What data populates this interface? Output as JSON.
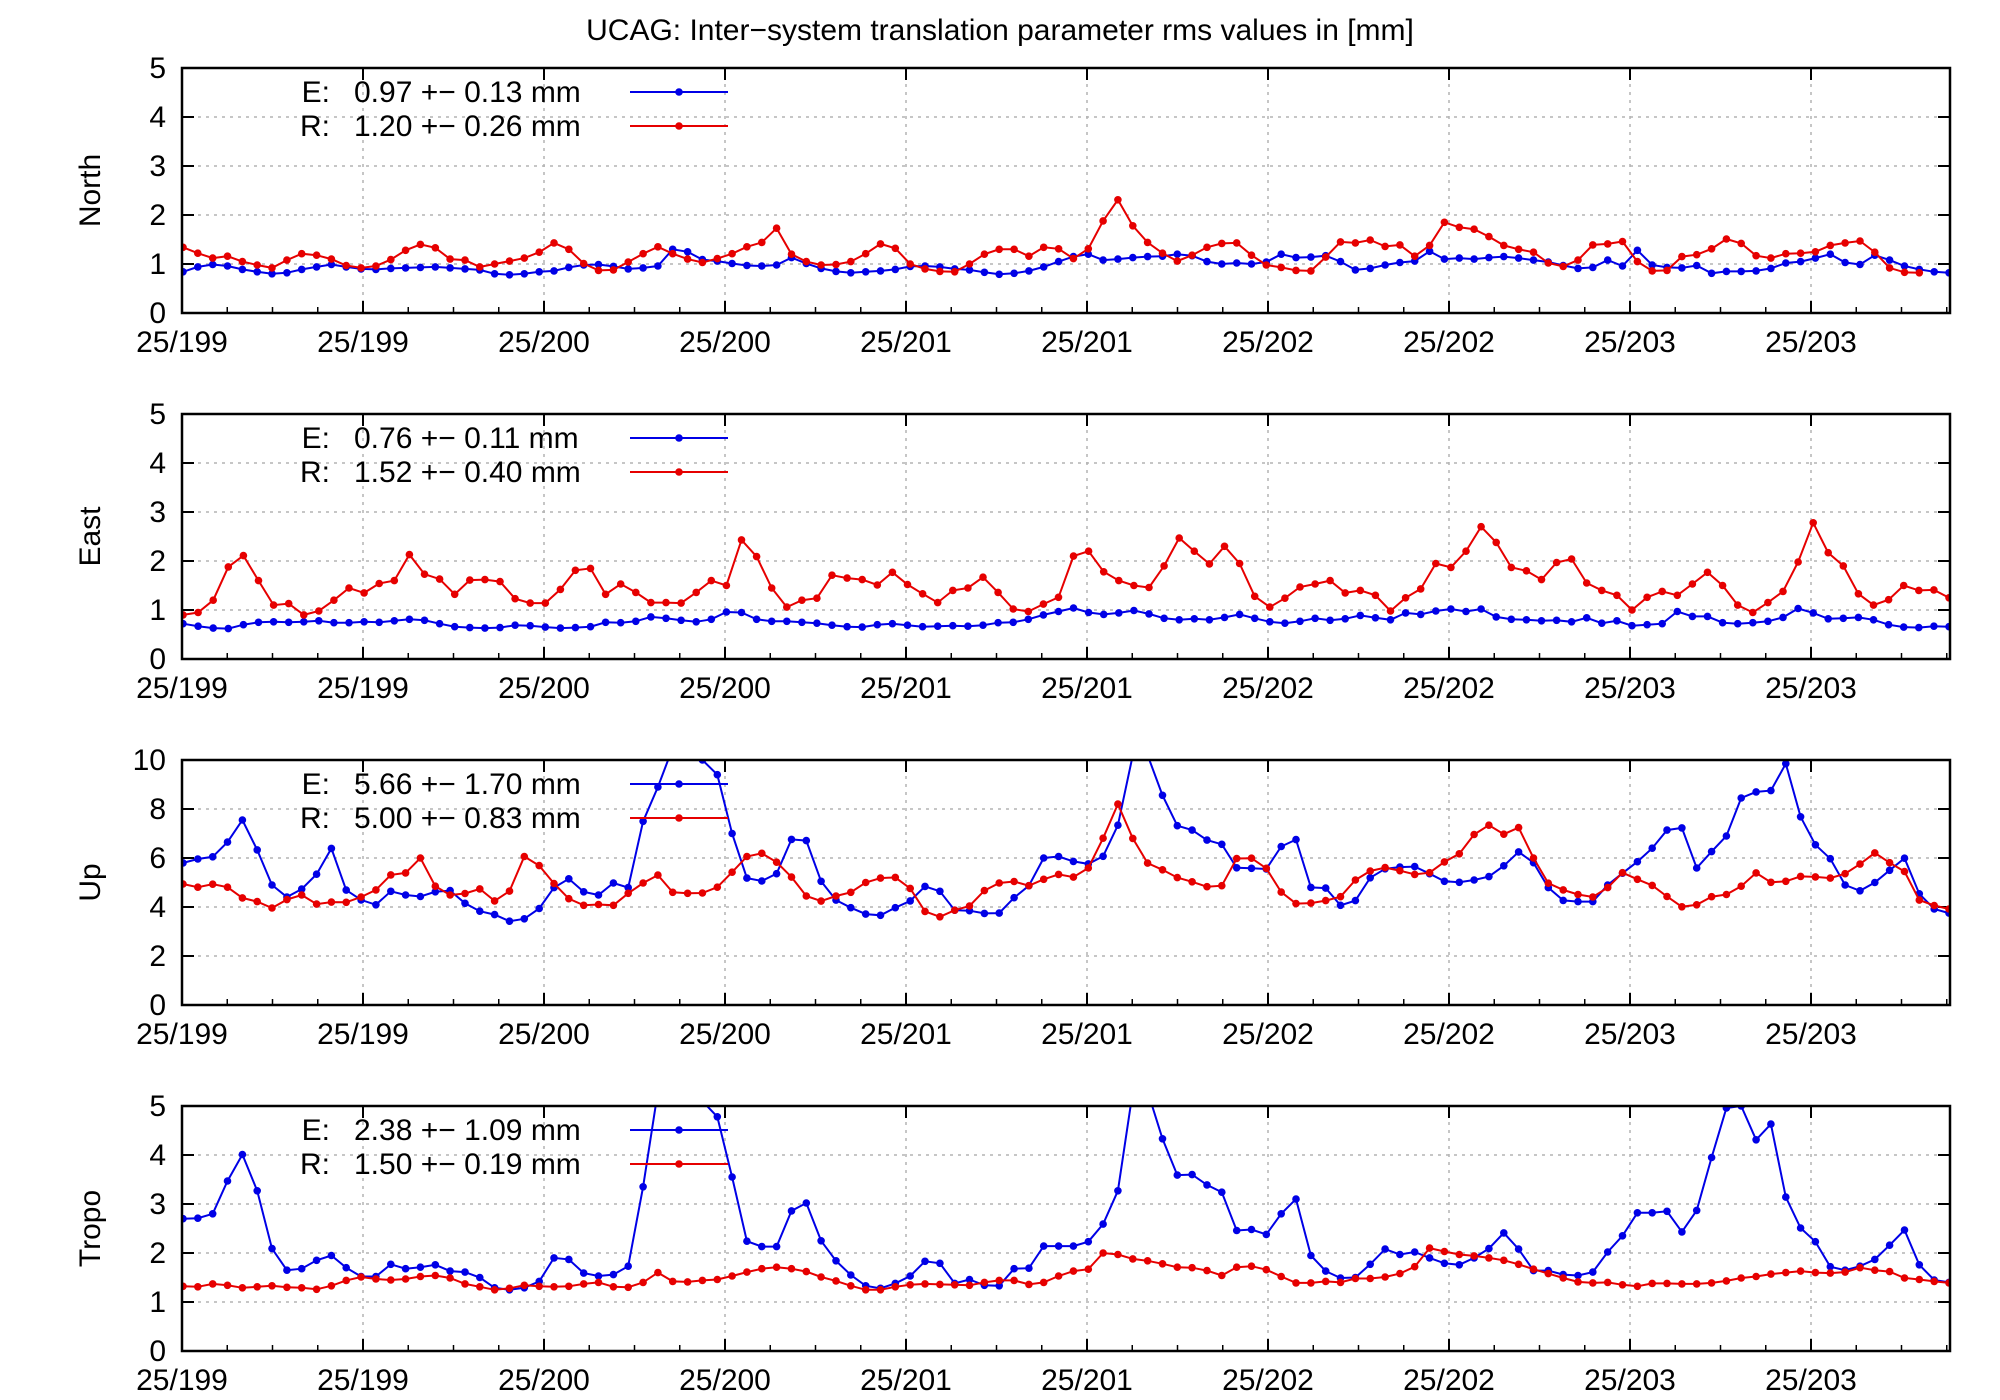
{
  "title": "UCAG: Inter−system translation parameter rms values in [mm]",
  "colors": {
    "E": "#0000e6",
    "R": "#e60000",
    "grid": "#b3b3b3",
    "axis": "#000000"
  },
  "chart_data": [
    {
      "type": "line",
      "ylabel": "North",
      "ylim": [
        0,
        5
      ],
      "yticks": [
        "0",
        "1",
        "2",
        "3",
        "4",
        "5"
      ],
      "xticklabels": [
        "25/199",
        "25/199",
        "25/200",
        "25/200",
        "25/201",
        "25/201",
        "25/202",
        "25/202",
        "25/203",
        "25/203"
      ],
      "series": [
        {
          "name": "E",
          "legend": "E:   0.97 +− 0.13 mm",
          "values": [
            0.84,
            0.94,
            0.99,
            0.96,
            0.89,
            0.84,
            0.8,
            0.82,
            0.89,
            0.94,
            0.99,
            0.94,
            0.9,
            0.89,
            0.91,
            0.92,
            0.93,
            0.94,
            0.92,
            0.9,
            0.88,
            0.8,
            0.78,
            0.8,
            0.84,
            0.86,
            0.93,
            0.98,
            0.99,
            0.95,
            0.9,
            0.92,
            0.96,
            1.3,
            1.25,
            1.09,
            1.06,
            1.01,
            0.97,
            0.96,
            0.98,
            1.13,
            1.01,
            0.91,
            0.85,
            0.82,
            0.84,
            0.86,
            0.89,
            0.95,
            0.96,
            0.94,
            0.9,
            0.88,
            0.83,
            0.79,
            0.81,
            0.86,
            0.94,
            1.05,
            1.15,
            1.2,
            1.08,
            1.1,
            1.13,
            1.15,
            1.16,
            1.2,
            1.17,
            1.05,
            1.0,
            1.02,
            1.0,
            1.04,
            1.2,
            1.13,
            1.14,
            1.17,
            1.05,
            0.88,
            0.91,
            0.98,
            1.03,
            1.06,
            1.26,
            1.1,
            1.12,
            1.1,
            1.13,
            1.15,
            1.12,
            1.08,
            1.04,
            0.97,
            0.91,
            0.93,
            1.08,
            0.96,
            1.28,
            0.98,
            0.93,
            0.92,
            0.97,
            0.81,
            0.85,
            0.85,
            0.86,
            0.91,
            1.02,
            1.05,
            1.12,
            1.2,
            1.03,
            0.99,
            1.18,
            1.08,
            0.96,
            0.89,
            0.84,
            0.82
          ]
        },
        {
          "name": "R",
          "legend": "R:   1.20 +− 0.26 mm",
          "values": [
            1.34,
            1.22,
            1.12,
            1.16,
            1.05,
            0.98,
            0.92,
            1.08,
            1.21,
            1.18,
            1.1,
            0.97,
            0.92,
            0.96,
            1.09,
            1.28,
            1.4,
            1.33,
            1.1,
            1.08,
            0.94,
            1.0,
            1.06,
            1.12,
            1.24,
            1.43,
            1.3,
            1.01,
            0.87,
            0.88,
            1.04,
            1.21,
            1.35,
            1.21,
            1.1,
            1.03,
            1.11,
            1.21,
            1.35,
            1.44,
            1.73,
            1.2,
            1.05,
            0.98,
            0.99,
            1.05,
            1.21,
            1.41,
            1.32,
            1.0,
            0.9,
            0.85,
            0.84,
            1.0,
            1.2,
            1.3,
            1.3,
            1.16,
            1.34,
            1.31,
            1.11,
            1.31,
            1.88,
            2.31,
            1.78,
            1.44,
            1.22,
            1.06,
            1.18,
            1.34,
            1.42,
            1.43,
            1.18,
            0.98,
            0.93,
            0.87,
            0.86,
            1.14,
            1.45,
            1.43,
            1.49,
            1.36,
            1.39,
            1.16,
            1.38,
            1.85,
            1.75,
            1.71,
            1.56,
            1.38,
            1.3,
            1.24,
            1.02,
            0.95,
            1.08,
            1.39,
            1.41,
            1.46,
            1.05,
            0.86,
            0.87,
            1.15,
            1.19,
            1.31,
            1.51,
            1.42,
            1.17,
            1.12,
            1.21,
            1.22,
            1.25,
            1.38,
            1.43,
            1.47,
            1.24,
            0.92,
            0.83,
            0.82
          ]
        }
      ]
    },
    {
      "type": "line",
      "ylabel": "East",
      "ylim": [
        0,
        5
      ],
      "yticks": [
        "0",
        "1",
        "2",
        "3",
        "4",
        "5"
      ],
      "xticklabels": [
        "25/199",
        "25/199",
        "25/200",
        "25/200",
        "25/201",
        "25/201",
        "25/202",
        "25/202",
        "25/203",
        "25/203"
      ],
      "series": [
        {
          "name": "E",
          "legend": "E:   0.76 +− 0.11 mm",
          "values": [
            0.72,
            0.67,
            0.63,
            0.62,
            0.7,
            0.75,
            0.76,
            0.75,
            0.76,
            0.78,
            0.74,
            0.74,
            0.76,
            0.75,
            0.78,
            0.81,
            0.79,
            0.72,
            0.66,
            0.64,
            0.63,
            0.64,
            0.69,
            0.68,
            0.65,
            0.63,
            0.64,
            0.66,
            0.75,
            0.74,
            0.77,
            0.86,
            0.83,
            0.79,
            0.76,
            0.81,
            0.96,
            0.95,
            0.81,
            0.77,
            0.77,
            0.75,
            0.73,
            0.69,
            0.66,
            0.65,
            0.7,
            0.72,
            0.69,
            0.66,
            0.67,
            0.68,
            0.67,
            0.69,
            0.74,
            0.75,
            0.81,
            0.9,
            0.97,
            1.04,
            0.95,
            0.91,
            0.94,
            0.99,
            0.92,
            0.83,
            0.8,
            0.82,
            0.8,
            0.85,
            0.91,
            0.83,
            0.76,
            0.73,
            0.77,
            0.83,
            0.79,
            0.82,
            0.89,
            0.84,
            0.8,
            0.94,
            0.91,
            0.98,
            1.02,
            0.97,
            1.02,
            0.86,
            0.81,
            0.8,
            0.78,
            0.79,
            0.76,
            0.84,
            0.73,
            0.78,
            0.68,
            0.7,
            0.72,
            0.97,
            0.87,
            0.87,
            0.74,
            0.72,
            0.74,
            0.77,
            0.85,
            1.03,
            0.94,
            0.82,
            0.83,
            0.85,
            0.8,
            0.7,
            0.65,
            0.64,
            0.67,
            0.66
          ]
        },
        {
          "name": "R",
          "legend": "R:   1.52 +− 0.40 mm",
          "values": [
            0.9,
            0.95,
            1.2,
            1.88,
            2.11,
            1.6,
            1.1,
            1.13,
            0.9,
            0.98,
            1.2,
            1.45,
            1.35,
            1.54,
            1.6,
            2.13,
            1.73,
            1.63,
            1.32,
            1.61,
            1.62,
            1.58,
            1.23,
            1.14,
            1.14,
            1.42,
            1.81,
            1.85,
            1.32,
            1.53,
            1.36,
            1.15,
            1.15,
            1.14,
            1.36,
            1.6,
            1.5,
            2.43,
            2.09,
            1.45,
            1.06,
            1.2,
            1.24,
            1.71,
            1.65,
            1.62,
            1.51,
            1.77,
            1.52,
            1.33,
            1.15,
            1.4,
            1.45,
            1.67,
            1.36,
            1.02,
            0.97,
            1.12,
            1.26,
            2.1,
            2.2,
            1.78,
            1.6,
            1.5,
            1.46,
            1.9,
            2.47,
            2.2,
            1.94,
            2.3,
            1.95,
            1.28,
            1.06,
            1.24,
            1.47,
            1.53,
            1.6,
            1.35,
            1.4,
            1.3,
            0.98,
            1.25,
            1.43,
            1.95,
            1.87,
            2.2,
            2.7,
            2.38,
            1.87,
            1.8,
            1.62,
            1.97,
            2.04,
            1.55,
            1.4,
            1.3,
            1.0,
            1.26,
            1.38,
            1.3,
            1.53,
            1.77,
            1.5,
            1.1,
            0.95,
            1.15,
            1.38,
            1.98,
            2.78,
            2.17,
            1.9,
            1.33,
            1.1,
            1.21,
            1.5,
            1.4,
            1.41,
            1.25
          ]
        }
      ]
    },
    {
      "type": "line",
      "ylabel": "Up",
      "ylim": [
        0,
        10
      ],
      "yticks": [
        "0",
        "2",
        "4",
        "6",
        "8",
        "10"
      ],
      "xticklabels": [
        "25/199",
        "25/199",
        "25/200",
        "25/200",
        "25/201",
        "25/201",
        "25/202",
        "25/202",
        "25/203",
        "25/203"
      ],
      "series": [
        {
          "name": "E",
          "legend": "E:   5.66 +− 1.70 mm",
          "values": [
            5.8,
            5.96,
            6.05,
            6.65,
            7.55,
            6.33,
            4.9,
            4.41,
            4.73,
            5.34,
            6.39,
            4.69,
            4.29,
            4.09,
            4.64,
            4.49,
            4.43,
            4.62,
            4.67,
            4.15,
            3.83,
            3.69,
            3.42,
            3.52,
            3.94,
            4.79,
            5.15,
            4.62,
            4.49,
            4.98,
            4.79,
            7.5,
            8.9,
            10.5,
            10.5,
            10.0,
            9.4,
            7.0,
            5.18,
            5.06,
            5.36,
            6.76,
            6.71,
            5.05,
            4.28,
            3.97,
            3.71,
            3.66,
            3.97,
            4.25,
            4.84,
            4.64,
            3.87,
            3.85,
            3.74,
            3.75,
            4.38,
            4.87,
            6.0,
            6.06,
            5.86,
            5.76,
            6.07,
            7.34,
            10.2,
            10.2,
            8.56,
            7.32,
            7.14,
            6.73,
            6.56,
            5.6,
            5.58,
            5.55,
            6.47,
            6.75,
            4.8,
            4.77,
            4.07,
            4.26,
            5.19,
            5.56,
            5.63,
            5.65,
            5.36,
            5.05,
            5.01,
            5.1,
            5.24,
            5.68,
            6.25,
            5.81,
            4.79,
            4.27,
            4.22,
            4.22,
            4.9,
            5.38,
            5.85,
            6.4,
            7.14,
            7.23,
            5.59,
            6.26,
            6.9,
            8.45,
            8.7,
            8.75,
            9.85,
            7.68,
            6.54,
            5.97,
            4.9,
            4.66,
            5.0,
            5.5,
            5.99,
            4.54,
            3.92,
            3.75
          ]
        },
        {
          "name": "R",
          "legend": "R:   5.00 +− 0.83 mm",
          "values": [
            4.94,
            4.81,
            4.93,
            4.81,
            4.37,
            4.22,
            3.96,
            4.3,
            4.49,
            4.12,
            4.2,
            4.19,
            4.41,
            4.7,
            5.31,
            5.39,
            6.0,
            4.85,
            4.49,
            4.55,
            4.74,
            4.25,
            4.65,
            6.06,
            5.69,
            4.96,
            4.34,
            4.07,
            4.1,
            4.07,
            4.56,
            4.98,
            5.3,
            4.6,
            4.56,
            4.57,
            4.81,
            5.42,
            6.06,
            6.19,
            5.83,
            5.22,
            4.45,
            4.24,
            4.45,
            4.6,
            5.0,
            5.18,
            5.21,
            4.76,
            3.82,
            3.6,
            3.87,
            4.04,
            4.67,
            4.98,
            5.04,
            4.87,
            5.13,
            5.33,
            5.22,
            5.59,
            6.81,
            8.2,
            6.8,
            5.79,
            5.52,
            5.2,
            5.03,
            4.83,
            4.87,
            5.98,
            5.99,
            5.58,
            4.61,
            4.14,
            4.16,
            4.26,
            4.42,
            5.1,
            5.47,
            5.61,
            5.48,
            5.33,
            5.4,
            5.84,
            6.17,
            6.96,
            7.34,
            6.97,
            7.24,
            6.0,
            4.97,
            4.7,
            4.51,
            4.41,
            4.79,
            5.4,
            5.13,
            4.88,
            4.43,
            4.01,
            4.09,
            4.42,
            4.51,
            4.85,
            5.39,
            5.01,
            5.05,
            5.25,
            5.23,
            5.18,
            5.36,
            5.75,
            6.21,
            5.81,
            5.45,
            4.28,
            4.06,
            3.92
          ]
        }
      ]
    },
    {
      "type": "line",
      "ylabel": "Tropo",
      "ylim": [
        0,
        5
      ],
      "yticks": [
        "0",
        "1",
        "2",
        "3",
        "4",
        "5"
      ],
      "xticklabels": [
        "25/199",
        "25/199",
        "25/200",
        "25/200",
        "25/201",
        "25/201",
        "25/202",
        "25/202",
        "25/203",
        "25/203"
      ],
      "series": [
        {
          "name": "E",
          "legend": "E:   2.38 +− 1.09 mm",
          "values": [
            2.7,
            2.71,
            2.8,
            3.47,
            4.01,
            3.27,
            2.09,
            1.65,
            1.68,
            1.85,
            1.95,
            1.7,
            1.52,
            1.52,
            1.77,
            1.68,
            1.71,
            1.76,
            1.63,
            1.61,
            1.5,
            1.29,
            1.25,
            1.29,
            1.42,
            1.9,
            1.87,
            1.59,
            1.53,
            1.56,
            1.73,
            3.35,
            5.3,
            5.3,
            5.3,
            5.1,
            4.78,
            3.55,
            2.24,
            2.13,
            2.13,
            2.86,
            3.02,
            2.25,
            1.84,
            1.55,
            1.33,
            1.28,
            1.38,
            1.53,
            1.83,
            1.79,
            1.38,
            1.46,
            1.34,
            1.33,
            1.68,
            1.69,
            2.14,
            2.14,
            2.14,
            2.23,
            2.59,
            3.27,
            5.3,
            5.3,
            4.33,
            3.59,
            3.6,
            3.39,
            3.24,
            2.46,
            2.48,
            2.38,
            2.8,
            3.1,
            1.95,
            1.63,
            1.49,
            1.5,
            1.77,
            2.08,
            1.97,
            2.02,
            1.9,
            1.79,
            1.76,
            1.9,
            2.09,
            2.41,
            2.08,
            1.64,
            1.64,
            1.56,
            1.54,
            1.61,
            2.02,
            2.35,
            2.82,
            2.82,
            2.85,
            2.43,
            2.87,
            3.95,
            4.96,
            5.0,
            4.31,
            4.63,
            3.14,
            2.51,
            2.23,
            1.72,
            1.65,
            1.73,
            1.87,
            2.16,
            2.47,
            1.76,
            1.45,
            1.4
          ]
        },
        {
          "name": "R",
          "legend": "R:   1.50 +− 0.19 mm",
          "values": [
            1.32,
            1.31,
            1.37,
            1.34,
            1.29,
            1.31,
            1.33,
            1.3,
            1.29,
            1.26,
            1.33,
            1.44,
            1.51,
            1.47,
            1.45,
            1.47,
            1.52,
            1.54,
            1.49,
            1.37,
            1.31,
            1.25,
            1.28,
            1.34,
            1.32,
            1.31,
            1.32,
            1.37,
            1.4,
            1.31,
            1.3,
            1.4,
            1.6,
            1.42,
            1.41,
            1.44,
            1.46,
            1.53,
            1.61,
            1.68,
            1.71,
            1.68,
            1.62,
            1.51,
            1.43,
            1.33,
            1.25,
            1.25,
            1.31,
            1.35,
            1.37,
            1.36,
            1.35,
            1.34,
            1.4,
            1.44,
            1.44,
            1.36,
            1.4,
            1.53,
            1.63,
            1.67,
            2.0,
            1.97,
            1.88,
            1.84,
            1.78,
            1.71,
            1.7,
            1.64,
            1.54,
            1.71,
            1.73,
            1.66,
            1.52,
            1.39,
            1.39,
            1.42,
            1.4,
            1.48,
            1.48,
            1.51,
            1.58,
            1.72,
            2.1,
            2.03,
            1.97,
            1.94,
            1.9,
            1.85,
            1.77,
            1.67,
            1.58,
            1.49,
            1.41,
            1.39,
            1.4,
            1.35,
            1.32,
            1.38,
            1.38,
            1.37,
            1.37,
            1.39,
            1.43,
            1.49,
            1.52,
            1.57,
            1.6,
            1.63,
            1.6,
            1.59,
            1.61,
            1.7,
            1.65,
            1.62,
            1.49,
            1.46,
            1.42,
            1.39
          ]
        }
      ]
    }
  ]
}
